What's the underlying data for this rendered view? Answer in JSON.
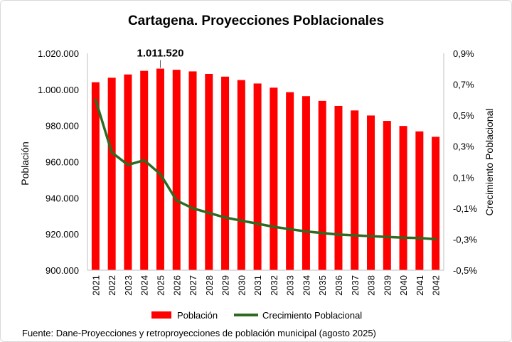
{
  "chart_data": {
    "type": "bar",
    "title": "Cartagena.  Proyecciones Poblacionales",
    "categories": [
      "2021",
      "2022",
      "2023",
      "2024",
      "2025",
      "2026",
      "2027",
      "2028",
      "2029",
      "2030",
      "2031",
      "2032",
      "2033",
      "2034",
      "2035",
      "2036",
      "2037",
      "2038",
      "2039",
      "2040",
      "2041",
      "2042"
    ],
    "series": [
      {
        "name": "Población",
        "type": "bar",
        "axis": "left",
        "color": "#ff0000",
        "values": [
          1004000,
          1006500,
          1008300,
          1010300,
          1011520,
          1010900,
          1010000,
          1008600,
          1007100,
          1005200,
          1003300,
          1001000,
          998500,
          996300,
          993700,
          990900,
          988400,
          985600,
          982600,
          979800,
          976800,
          973800
        ]
      },
      {
        "name": "Crecimiento Poblacional",
        "type": "line",
        "axis": "right",
        "color": "#2e6b22",
        "values": [
          0.6,
          0.26,
          0.18,
          0.21,
          0.12,
          -0.05,
          -0.1,
          -0.13,
          -0.16,
          -0.18,
          -0.2,
          -0.22,
          -0.235,
          -0.25,
          -0.26,
          -0.27,
          -0.275,
          -0.28,
          -0.285,
          -0.29,
          -0.292,
          -0.3
        ]
      }
    ],
    "ylabel": "Población",
    "y2label": "Crecimiento Poblacional",
    "ylim": [
      900000,
      1020000
    ],
    "yticks": [
      900000,
      920000,
      940000,
      960000,
      980000,
      1000000,
      1020000
    ],
    "ytick_labels": [
      "900.000",
      "920.000",
      "940.000",
      "960.000",
      "980.000",
      "1.000.000",
      "1.020.000"
    ],
    "y2lim": [
      -0.5,
      0.9
    ],
    "y2ticks": [
      -0.5,
      -0.3,
      -0.1,
      0.1,
      0.3,
      0.5,
      0.7,
      0.9
    ],
    "y2tick_labels": [
      "-0,5%",
      "-0,3%",
      "-0,1%",
      "0,1%",
      "0,3%",
      "0,5%",
      "0,7%",
      "0,9%"
    ],
    "annotation": {
      "category": "2025",
      "text": "1.011.520"
    },
    "grid": false,
    "legend_position": "bottom",
    "source": "Fuente: Dane-Proyecciones y retroproyecciones de población municipal (agosto 2025)"
  }
}
